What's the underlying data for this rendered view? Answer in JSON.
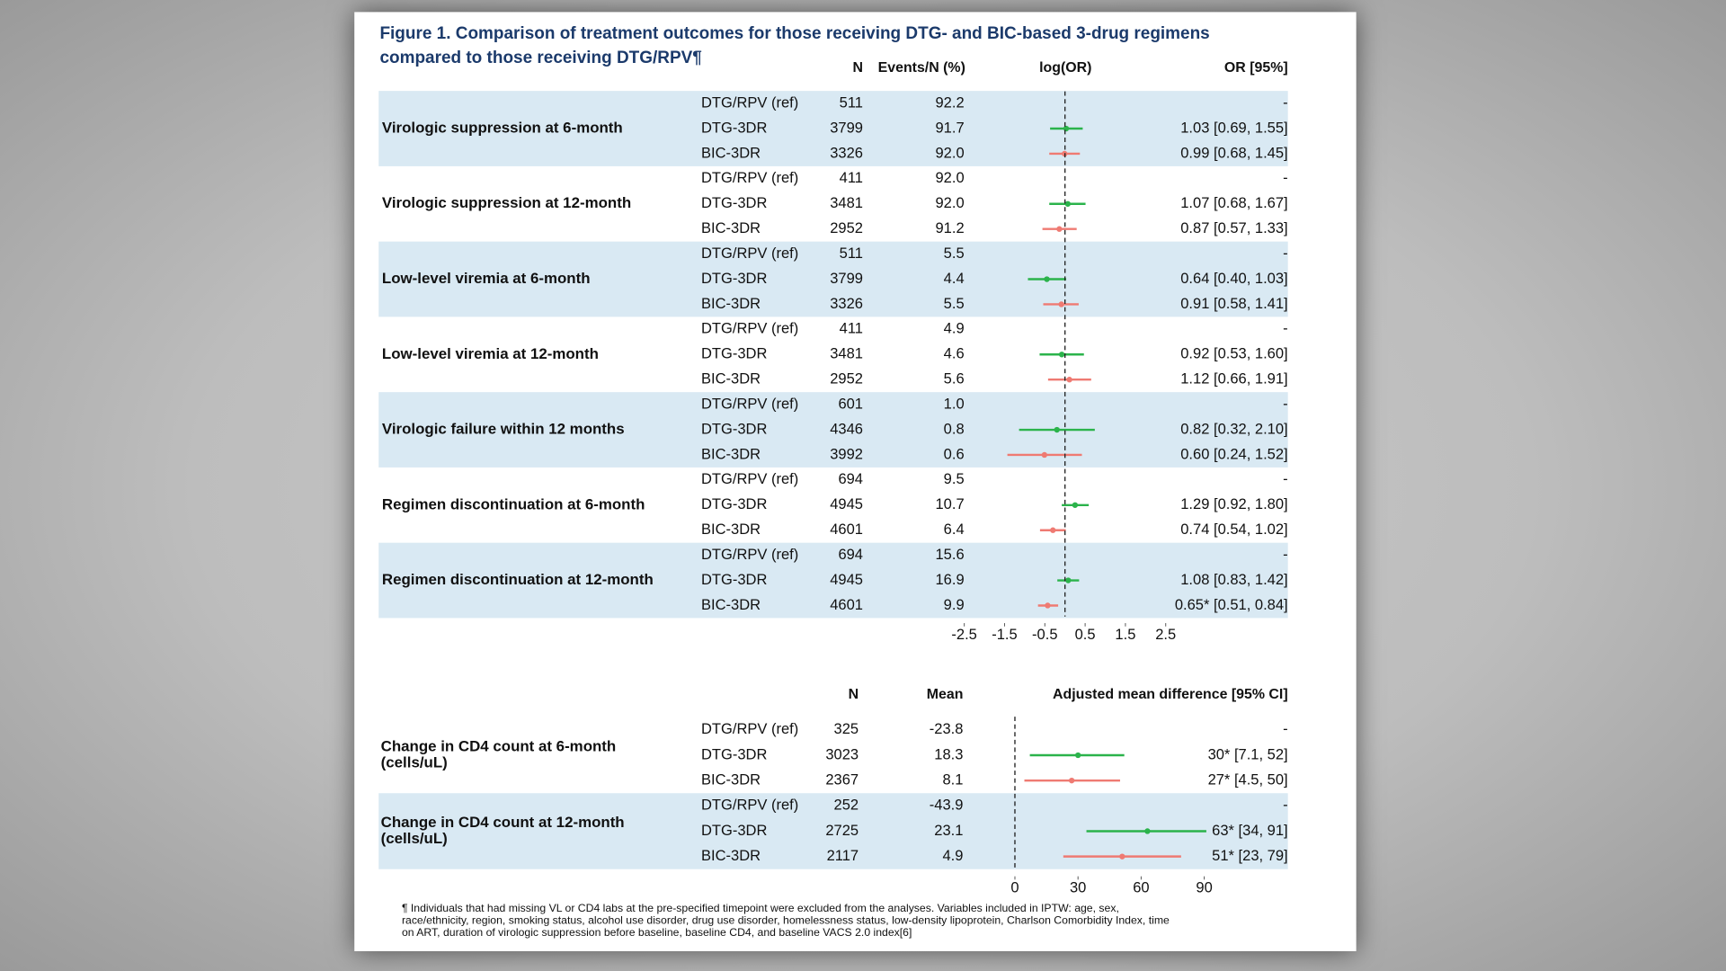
{
  "title": [
    "Figure 1. Comparison of treatment outcomes for those receiving DTG- and BIC-based 3-drug regimens",
    "compared to those receiving DTG/RPV¶"
  ],
  "footnote": [
    "¶ Individuals that had missing VL or CD4 labs at the pre-specified timepoint were excluded from the analyses. Variables included in IPTW: age, sex,",
    "race/ethnicity, region, smoking status, alcohol use disorder, drug use disorder, homelessness status, low-density lipoprotein, Charlson Comorbidity Index, time",
    "on ART, duration of virologic suppression before baseline, baseline CD4, and baseline VACS 2.0 index[6]"
  ],
  "chart_data": [
    {
      "type": "forest",
      "column_headers": [
        "N",
        "Events/N (%)",
        "log(OR)",
        "OR [95%]"
      ],
      "xlim": [
        -2.5,
        2.5
      ],
      "xticks": [
        -2.5,
        -1.5,
        -0.5,
        0.5,
        1.5,
        2.5
      ],
      "reference_line": 0,
      "groups": [
        {
          "label": "Virologic suppression at 6-month",
          "rows": [
            {
              "regimen": "DTG/RPV (ref)",
              "n": 511,
              "events": "92.2",
              "label": "-"
            },
            {
              "regimen": "DTG-3DR",
              "n": 3799,
              "events": "91.7",
              "estimate": 0.03,
              "lower": -0.37,
              "upper": 0.44,
              "label": "1.03 [0.69, 1.55]",
              "color": "#2bb34b"
            },
            {
              "regimen": "BIC-3DR",
              "n": 3326,
              "events": "92.0",
              "estimate": -0.01,
              "lower": -0.39,
              "upper": 0.37,
              "label": "0.99 [0.68, 1.45]",
              "color": "#ef7a72"
            }
          ]
        },
        {
          "label": "Virologic suppression at 12-month",
          "rows": [
            {
              "regimen": "DTG/RPV (ref)",
              "n": 411,
              "events": "92.0",
              "label": "-"
            },
            {
              "regimen": "DTG-3DR",
              "n": 3481,
              "events": "92.0",
              "estimate": 0.07,
              "lower": -0.39,
              "upper": 0.51,
              "label": "1.07 [0.68, 1.67]",
              "color": "#2bb34b"
            },
            {
              "regimen": "BIC-3DR",
              "n": 2952,
              "events": "91.2",
              "estimate": -0.14,
              "lower": -0.56,
              "upper": 0.29,
              "label": "0.87 [0.57, 1.33]",
              "color": "#ef7a72"
            }
          ]
        },
        {
          "label": "Low-level viremia at 6-month",
          "rows": [
            {
              "regimen": "DTG/RPV (ref)",
              "n": 511,
              "events": "5.5",
              "label": "-"
            },
            {
              "regimen": "DTG-3DR",
              "n": 3799,
              "events": "4.4",
              "estimate": -0.45,
              "lower": -0.92,
              "upper": 0.03,
              "label": "0.64 [0.40, 1.03]",
              "color": "#2bb34b"
            },
            {
              "regimen": "BIC-3DR",
              "n": 3326,
              "events": "5.5",
              "estimate": -0.09,
              "lower": -0.54,
              "upper": 0.34,
              "label": "0.91 [0.58, 1.41]",
              "color": "#ef7a72"
            }
          ]
        },
        {
          "label": "Low-level viremia at 12-month",
          "rows": [
            {
              "regimen": "DTG/RPV (ref)",
              "n": 411,
              "events": "4.9",
              "label": "-"
            },
            {
              "regimen": "DTG-3DR",
              "n": 3481,
              "events": "4.6",
              "estimate": -0.08,
              "lower": -0.63,
              "upper": 0.47,
              "label": "0.92 [0.53, 1.60]",
              "color": "#2bb34b"
            },
            {
              "regimen": "BIC-3DR",
              "n": 2952,
              "events": "5.6",
              "estimate": 0.11,
              "lower": -0.42,
              "upper": 0.65,
              "label": "1.12 [0.66, 1.91]",
              "color": "#ef7a72"
            }
          ]
        },
        {
          "label": "Virologic failure within 12 months",
          "rows": [
            {
              "regimen": "DTG/RPV (ref)",
              "n": 601,
              "events": "1.0",
              "label": "-"
            },
            {
              "regimen": "DTG-3DR",
              "n": 4346,
              "events": "0.8",
              "estimate": -0.2,
              "lower": -1.14,
              "upper": 0.74,
              "label": "0.82 [0.32, 2.10]",
              "color": "#2bb34b"
            },
            {
              "regimen": "BIC-3DR",
              "n": 3992,
              "events": "0.6",
              "estimate": -0.51,
              "lower": -1.43,
              "upper": 0.42,
              "label": "0.60 [0.24, 1.52]",
              "color": "#ef7a72"
            }
          ]
        },
        {
          "label": "Regimen discontinuation at 6-month",
          "rows": [
            {
              "regimen": "DTG/RPV (ref)",
              "n": 694,
              "events": "9.5",
              "label": "-"
            },
            {
              "regimen": "DTG-3DR",
              "n": 4945,
              "events": "10.7",
              "estimate": 0.25,
              "lower": -0.08,
              "upper": 0.59,
              "label": "1.29 [0.92, 1.80]",
              "color": "#2bb34b"
            },
            {
              "regimen": "BIC-3DR",
              "n": 4601,
              "events": "6.4",
              "estimate": -0.3,
              "lower": -0.62,
              "upper": 0.02,
              "label": "0.74 [0.54, 1.02]",
              "color": "#ef7a72"
            }
          ]
        },
        {
          "label": "Regimen discontinuation at 12-month",
          "rows": [
            {
              "regimen": "DTG/RPV (ref)",
              "n": 694,
              "events": "15.6",
              "label": "-"
            },
            {
              "regimen": "DTG-3DR",
              "n": 4945,
              "events": "16.9",
              "estimate": 0.08,
              "lower": -0.19,
              "upper": 0.35,
              "label": "1.08 [0.83, 1.42]",
              "color": "#2bb34b"
            },
            {
              "regimen": "BIC-3DR",
              "n": 4601,
              "events": "9.9",
              "estimate": -0.43,
              "lower": -0.67,
              "upper": -0.17,
              "label": "0.65* [0.51, 0.84]",
              "color": "#ef7a72"
            }
          ]
        }
      ]
    },
    {
      "type": "forest",
      "column_headers": [
        "N",
        "Mean",
        "Adjusted mean difference [95% CI]"
      ],
      "xlim": [
        0,
        90
      ],
      "xticks": [
        0,
        30,
        60,
        90
      ],
      "reference_line": 0,
      "groups": [
        {
          "label": [
            "Change in CD4 count at 6-month",
            "(cells/uL)"
          ],
          "rows": [
            {
              "regimen": "DTG/RPV (ref)",
              "n": 325,
              "events": -23.8,
              "label": "-"
            },
            {
              "regimen": "DTG-3DR",
              "n": 3023,
              "events": 18.3,
              "estimate": 30,
              "lower": 7.1,
              "upper": 52,
              "label": "30* [7.1, 52]",
              "color": "#2bb34b"
            },
            {
              "regimen": "BIC-3DR",
              "n": 2367,
              "events": 8.1,
              "estimate": 27,
              "lower": 4.5,
              "upper": 50,
              "label": "27* [4.5, 50]",
              "color": "#ef7a72"
            }
          ]
        },
        {
          "label": [
            "Change in CD4 count at 12-month",
            "(cells/uL)"
          ],
          "rows": [
            {
              "regimen": "DTG/RPV (ref)",
              "n": 252,
              "events": -43.9,
              "label": "-"
            },
            {
              "regimen": "DTG-3DR",
              "n": 2725,
              "events": 23.1,
              "estimate": 63,
              "lower": 34,
              "upper": 91,
              "label": "63* [34, 91]",
              "color": "#2bb34b"
            },
            {
              "regimen": "BIC-3DR",
              "n": 2117,
              "events": 4.9,
              "estimate": 51,
              "lower": 23,
              "upper": 79,
              "label": "51* [23, 79]",
              "color": "#ef7a72"
            }
          ]
        }
      ]
    }
  ]
}
